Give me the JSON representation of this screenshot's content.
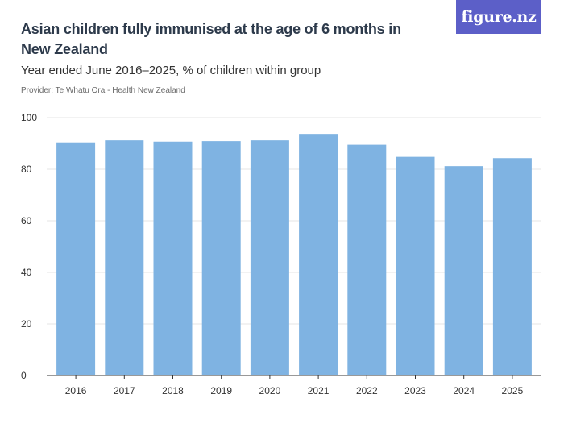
{
  "header": {
    "title": "Asian children fully immunised at the age of 6 months in New Zealand",
    "subtitle": "Year ended June 2016–2025, % of children within group",
    "provider": "Provider: Te Whatu Ora - Health New Zealand"
  },
  "logo": {
    "text": "figure.nz",
    "bg_color": "#5c5fc8"
  },
  "colors": {
    "bar": "#7fb3e2",
    "grid": "#e6e6e6",
    "axis": "#333333"
  },
  "chart_data": {
    "type": "bar",
    "title": "Asian children fully immunised at the age of 6 months in New Zealand",
    "subtitle": "Year ended June 2016–2025, % of children within group",
    "categories": [
      "2016",
      "2017",
      "2018",
      "2019",
      "2020",
      "2021",
      "2022",
      "2023",
      "2024",
      "2025"
    ],
    "values": [
      90.4,
      91.2,
      90.7,
      90.9,
      91.2,
      93.7,
      89.5,
      84.8,
      81.2,
      84.3
    ],
    "ylim": [
      0,
      100
    ],
    "yticks": [
      0,
      20,
      40,
      60,
      80,
      100
    ],
    "xlabel": "",
    "ylabel": "",
    "grid": true
  }
}
